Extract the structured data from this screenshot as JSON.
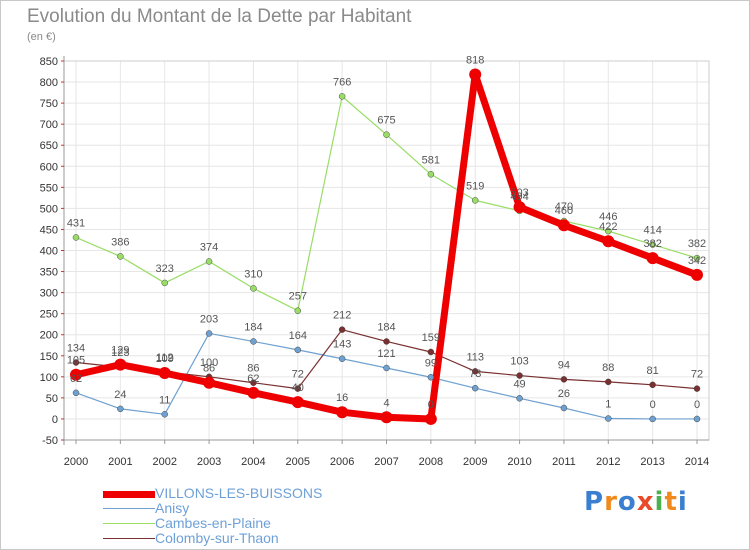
{
  "title": "Evolution du Montant de la Dette par Habitant",
  "unit": "(en €)",
  "logo": {
    "text": "Proxiti",
    "letters": [
      "P",
      "r",
      "o",
      "x",
      "i",
      "t",
      "i"
    ],
    "colors": [
      "#3a7fd0",
      "#f08a1c",
      "#3a7fd0",
      "#e94b2a",
      "#4caf50",
      "#f08a1c",
      "#3a7fd0"
    ]
  },
  "chart_data": {
    "type": "line",
    "title": "Evolution du Montant de la Dette par Habitant",
    "ylabel": "(en €)",
    "xlabel": "",
    "ylim": [
      -50,
      850
    ],
    "yticks": [
      -50,
      0,
      50,
      100,
      150,
      200,
      250,
      300,
      350,
      400,
      450,
      500,
      550,
      600,
      650,
      700,
      750,
      800,
      850
    ],
    "x": [
      2000,
      2001,
      2002,
      2003,
      2004,
      2005,
      2006,
      2007,
      2008,
      2009,
      2010,
      2011,
      2012,
      2013,
      2014
    ],
    "grid": true,
    "legend": "bottom-left",
    "series": [
      {
        "name": "VILLONS-LES-BUISSONS",
        "color": "#ee0000",
        "width": 7,
        "values": [
          105,
          129,
          109,
          86,
          62,
          40,
          16,
          4,
          0,
          818,
          503,
          460,
          422,
          382,
          342
        ]
      },
      {
        "name": "Anisy",
        "color": "#6ea0d0",
        "width": 1.2,
        "values": [
          62,
          24,
          11,
          203,
          184,
          164,
          143,
          121,
          99,
          73,
          49,
          26,
          1,
          0,
          0
        ]
      },
      {
        "name": "Cambes-en-Plaine",
        "color": "#99dd66",
        "width": 1.2,
        "values": [
          431,
          386,
          323,
          374,
          310,
          257,
          766,
          675,
          581,
          519,
          494,
          470,
          446,
          414,
          382
        ]
      },
      {
        "name": "Colomby-sur-Thaon",
        "color": "#7a3030",
        "width": 1.2,
        "values": [
          134,
          123,
          112,
          100,
          86,
          72,
          212,
          184,
          159,
          113,
          103,
          94,
          88,
          81,
          72
        ]
      }
    ]
  }
}
